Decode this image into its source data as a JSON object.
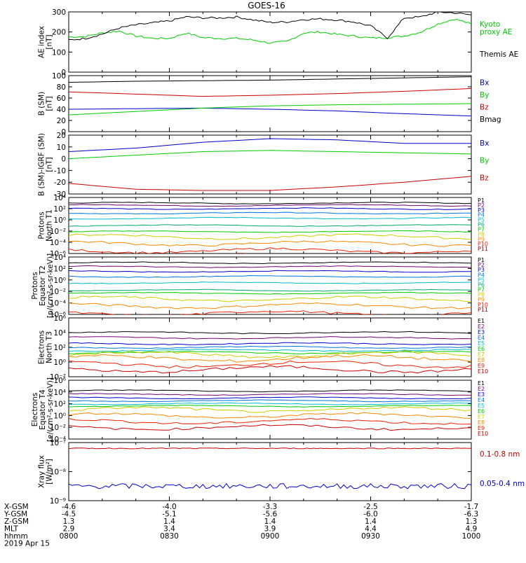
{
  "chart_data": {
    "type": "line",
    "title": "GOES-16",
    "time_axis": {
      "ticks": [
        "0800",
        "0830",
        "0900",
        "0930",
        "1000"
      ],
      "range": [
        "0800",
        "1000"
      ],
      "date": "2019 Apr 15"
    },
    "ephemeris": {
      "labels": [
        "X-GSM",
        "Y-GSM",
        "Z-GSM",
        "MLT",
        "hhmm"
      ],
      "rows": [
        [
          "-4.6",
          "-4.0",
          "-3.3",
          "-2.5",
          "-1.7"
        ],
        [
          "-4.5",
          "-5.1",
          "-5.6",
          "-6.0",
          "-6.3"
        ],
        [
          "1.3",
          "1.4",
          "1.4",
          "1.4",
          "1.3"
        ],
        [
          "2.9",
          "3.4",
          "3.9",
          "4.4",
          "4.9"
        ],
        [
          "0800",
          "0830",
          "0900",
          "0930",
          "1000"
        ]
      ]
    },
    "panels": [
      {
        "id": "ae",
        "ylabel": [
          "AE index",
          "[nT]"
        ],
        "scale": "linear",
        "ylim": [
          0,
          300
        ],
        "yticks": [
          "0",
          "100",
          "200",
          "300"
        ],
        "series": [
          {
            "name": "Kyoto proxy AE",
            "legend_lines": [
              "Kyoto",
              "proxy AE"
            ],
            "color": "#00cc00",
            "x": [
              0,
              5,
              10,
              15,
              20,
              25,
              30,
              35,
              40,
              45,
              50,
              55,
              60,
              65,
              70,
              75,
              80,
              85,
              90,
              95,
              100,
              105,
              110,
              115,
              120
            ],
            "y": [
              175,
              178,
              195,
              205,
              180,
              168,
              168,
              195,
              172,
              168,
              168,
              160,
              145,
              152,
              195,
              200,
              188,
              180,
              170,
              172,
              180,
              200,
              240,
              265,
              240
            ]
          },
          {
            "name": "Themis AE",
            "legend_lines": [
              "Themis AE"
            ],
            "color": "#000000",
            "x": [
              0,
              5,
              10,
              15,
              20,
              25,
              30,
              35,
              40,
              45,
              50,
              55,
              60,
              65,
              70,
              75,
              80,
              85,
              90,
              95,
              100,
              105,
              110,
              115,
              120
            ],
            "y": [
              160,
              168,
              190,
              220,
              235,
              245,
              255,
              275,
              270,
              270,
              275,
              260,
              248,
              250,
              262,
              265,
              260,
              250,
              230,
              170,
              270,
              275,
              300,
              295,
              285
            ]
          }
        ]
      },
      {
        "id": "bsm",
        "ylabel": [
          "B (SM)",
          "[nT]"
        ],
        "scale": "linear",
        "ylim": [
          0,
          100
        ],
        "yticks": [
          "0",
          "20",
          "40",
          "60",
          "80",
          "100"
        ],
        "series": [
          {
            "name": "Bx",
            "color": "#0000cc",
            "x": [
              0,
              20,
              40,
              60,
              80,
              100,
              120
            ],
            "y": [
              40,
              41,
              42,
              40,
              37,
              32,
              28
            ]
          },
          {
            "name": "By",
            "color": "#00cc00",
            "x": [
              0,
              20,
              40,
              60,
              80,
              100,
              120
            ],
            "y": [
              30,
              36,
              42,
              46,
              48,
              49,
              50
            ]
          },
          {
            "name": "Bz",
            "color": "#cc0000",
            "x": [
              0,
              20,
              40,
              60,
              80,
              100,
              120
            ],
            "y": [
              71,
              67,
              63,
              65,
              68,
              72,
              77
            ]
          },
          {
            "name": "Bmag",
            "color": "#000000",
            "x": [
              0,
              20,
              40,
              60,
              80,
              100,
              120
            ],
            "y": [
              88,
              90,
              91,
              92,
              94,
              96,
              98
            ]
          }
        ]
      },
      {
        "id": "bigrf",
        "ylabel": [
          "B (SM)-IGRF (SM)",
          "[nT]"
        ],
        "scale": "linear",
        "ylim": [
          -30,
          20
        ],
        "yticks": [
          "-30",
          "-20",
          "-10",
          "0",
          "10",
          "20"
        ],
        "series": [
          {
            "name": "Bx",
            "color": "#0000cc",
            "x": [
              0,
              20,
              40,
              60,
              80,
              100,
              120
            ],
            "y": [
              6,
              9,
              14,
              17,
              16,
              13,
              13
            ]
          },
          {
            "name": "By",
            "color": "#00cc00",
            "x": [
              0,
              20,
              40,
              60,
              80,
              100,
              120
            ],
            "y": [
              0,
              3,
              6,
              7,
              6,
              5,
              4
            ]
          },
          {
            "name": "Bz",
            "color": "#cc0000",
            "x": [
              0,
              20,
              40,
              60,
              80,
              100,
              120
            ],
            "y": [
              -21,
              -26,
              -27,
              -27,
              -24,
              -20,
              -15
            ]
          }
        ]
      },
      {
        "id": "pn",
        "ylabel": [
          "Protons",
          "North T1"
        ],
        "scale": "log",
        "ylim_exp": [
          -6,
          4
        ],
        "ytick_exps": [
          4,
          2,
          0,
          -2,
          -4,
          -6
        ],
        "legend_small": true,
        "channels": [
          {
            "name": "P1",
            "color": "#000000",
            "log_y": 3.0
          },
          {
            "name": "P2",
            "color": "#7a007a",
            "log_y": 2.6
          },
          {
            "name": "P3",
            "color": "#0000cc",
            "log_y": 2.0
          },
          {
            "name": "P4",
            "color": "#0077dd",
            "log_y": 1.2
          },
          {
            "name": "P5",
            "color": "#00bbcc",
            "log_y": 0.3
          },
          {
            "name": "P6",
            "color": "#00aa66",
            "log_y": -1.0
          },
          {
            "name": "P7",
            "color": "#00cc00",
            "log_y": -2.1
          },
          {
            "name": "P8",
            "color": "#cccc00",
            "log_y": -3.0
          },
          {
            "name": "P9",
            "color": "#ff8800",
            "log_y": -4.2
          },
          {
            "name": "P10",
            "color": "#ee2200",
            "log_y": -5.5
          },
          {
            "name": "P11",
            "color": "#990000",
            "log_y": -6.5
          }
        ]
      },
      {
        "id": "peq",
        "ylabel": [
          "Protons",
          "Equator T2",
          "[p/(cm²-s-sr-keV)]"
        ],
        "scale": "log",
        "ylim_exp": [
          -6,
          4
        ],
        "ytick_exps": [
          4,
          2,
          0,
          -2,
          -4,
          -6
        ],
        "legend_small": true,
        "channels": [
          {
            "name": "P1",
            "color": "#000000",
            "log_y": 3.0
          },
          {
            "name": "P2",
            "color": "#7a007a",
            "log_y": 2.3
          },
          {
            "name": "P3",
            "color": "#0000cc",
            "log_y": 1.5
          },
          {
            "name": "P4",
            "color": "#0077dd",
            "log_y": 0.6
          },
          {
            "name": "P5",
            "color": "#00bbcc",
            "log_y": -0.5
          },
          {
            "name": "P6",
            "color": "#00aa66",
            "log_y": -1.8
          },
          {
            "name": "P7",
            "color": "#00cc00",
            "log_y": -2.3
          },
          {
            "name": "P8",
            "color": "#cccc00",
            "log_y": -3.3
          },
          {
            "name": "P9",
            "color": "#ff8800",
            "log_y": -4.5
          },
          {
            "name": "P10",
            "color": "#ee2200",
            "log_y": -5.8
          },
          {
            "name": "P11",
            "color": "#990000",
            "log_y": -6.8
          }
        ]
      },
      {
        "id": "en",
        "ylabel": [
          "Electrons",
          "North T3"
        ],
        "scale": "log",
        "ylim_exp": [
          -2,
          6
        ],
        "ytick_exps": [
          6,
          4,
          2,
          0,
          -2
        ],
        "legend_small": true,
        "channels": [
          {
            "name": "E1",
            "color": "#000000",
            "log_y": 4.0
          },
          {
            "name": "E2",
            "color": "#7a007a",
            "log_y": 3.3
          },
          {
            "name": "E3",
            "color": "#0000cc",
            "log_y": 2.5
          },
          {
            "name": "E4",
            "color": "#0077dd",
            "log_y": 2.0
          },
          {
            "name": "E5",
            "color": "#00bbcc",
            "log_y": 1.6
          },
          {
            "name": "E6",
            "color": "#00cc00",
            "log_y": 1.3
          },
          {
            "name": "E7",
            "color": "#cccc00",
            "log_y": 1.0
          },
          {
            "name": "E8",
            "color": "#ff8800",
            "log_y": 0.5
          },
          {
            "name": "E9",
            "color": "#ee2200",
            "log_y": -0.3
          },
          {
            "name": "E10",
            "color": "#cc0000",
            "log_y": -1.0
          }
        ]
      },
      {
        "id": "eeq",
        "ylabel": [
          "Electrons",
          "Equator T4",
          "[e/(cm²-s-sr-keV)]"
        ],
        "scale": "log",
        "ylim_exp": [
          -4,
          6
        ],
        "ytick_exps": [
          6,
          4,
          2,
          0,
          -2,
          -4
        ],
        "legend_small": true,
        "channels": [
          {
            "name": "E1",
            "color": "#000000",
            "log_y": 4.2
          },
          {
            "name": "E2",
            "color": "#7a007a",
            "log_y": 3.6
          },
          {
            "name": "E3",
            "color": "#0000cc",
            "log_y": 3.0
          },
          {
            "name": "E4",
            "color": "#0077dd",
            "log_y": 2.5
          },
          {
            "name": "E5",
            "color": "#00bbcc",
            "log_y": 2.0
          },
          {
            "name": "E6",
            "color": "#00cc00",
            "log_y": 1.6
          },
          {
            "name": "E7",
            "color": "#cccc00",
            "log_y": 1.0
          },
          {
            "name": "E8",
            "color": "#ff8800",
            "log_y": 0.0
          },
          {
            "name": "E9",
            "color": "#ee2200",
            "log_y": -1.0
          },
          {
            "name": "E10",
            "color": "#cc0000",
            "log_y": -2.0
          }
        ]
      },
      {
        "id": "xray",
        "ylabel": [
          "Xray flux",
          "[W/m²]"
        ],
        "scale": "log",
        "ylim_exp": [
          -9,
          -7
        ],
        "ytick_exps": [
          -7,
          -8,
          -9
        ],
        "series": [
          {
            "name": "0.1-0.8 nm",
            "color": "#cc0000",
            "log_y": -7.2
          },
          {
            "name": "0.05-0.4 nm",
            "color": "#0000cc",
            "log_y": -8.5
          }
        ]
      }
    ]
  }
}
